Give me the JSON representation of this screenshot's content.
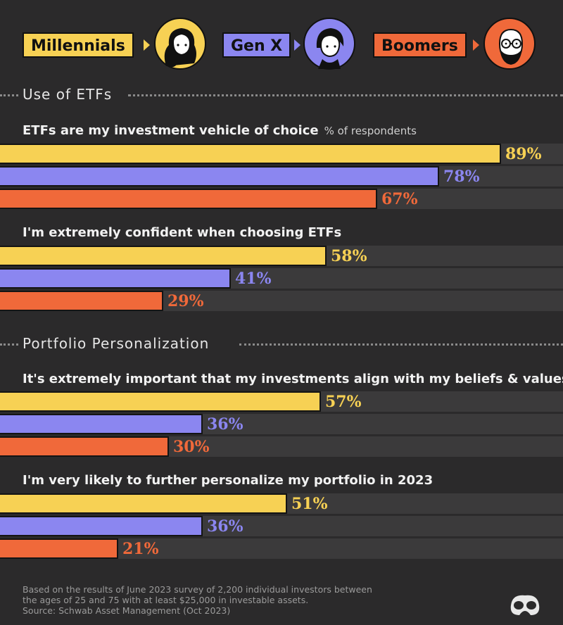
{
  "colors": {
    "millennials": "#f7d154",
    "genx": "#8b86f0",
    "boomers": "#f0693a",
    "track": "#3b3a3b",
    "background": "#2b2a2b"
  },
  "legend": {
    "millennials": "Millennials",
    "genx": "Gen X",
    "boomers": "Boomers"
  },
  "sections": {
    "etfs": "Use of ETFs",
    "personalization": "Portfolio Personalization"
  },
  "unit_note": "% of respondents",
  "chart_data": {
    "type": "bar",
    "orientation": "horizontal",
    "series_order": [
      "Millennials",
      "Gen X",
      "Boomers"
    ],
    "xlim": [
      0,
      100
    ],
    "questions": [
      {
        "section": "Use of ETFs",
        "label": "ETFs are my investment vehicle of choice",
        "values": [
          89,
          78,
          67
        ],
        "labels": [
          "89%",
          "78%",
          "67%"
        ]
      },
      {
        "section": "Use of ETFs",
        "label": "I'm extremely confident when choosing ETFs",
        "values": [
          58,
          41,
          29
        ],
        "labels": [
          "58%",
          "41%",
          "29%"
        ]
      },
      {
        "section": "Portfolio Personalization",
        "label": "It's extremely important that my investments align with my beliefs & values",
        "values": [
          57,
          36,
          30
        ],
        "labels": [
          "57%",
          "36%",
          "30%"
        ]
      },
      {
        "section": "Portfolio Personalization",
        "label": "I'm very likely to further personalize my portfolio in 2023",
        "values": [
          51,
          36,
          21
        ],
        "labels": [
          "51%",
          "36%",
          "21%"
        ]
      }
    ]
  },
  "footer": {
    "line1": "Based on the results of June 2023 survey of 2,200 individual investors between",
    "line2": "the ages of 25 and 75 with at least $25,000 in investable assets.",
    "line3": "Source: Schwab Asset Management (Oct 2023)"
  }
}
